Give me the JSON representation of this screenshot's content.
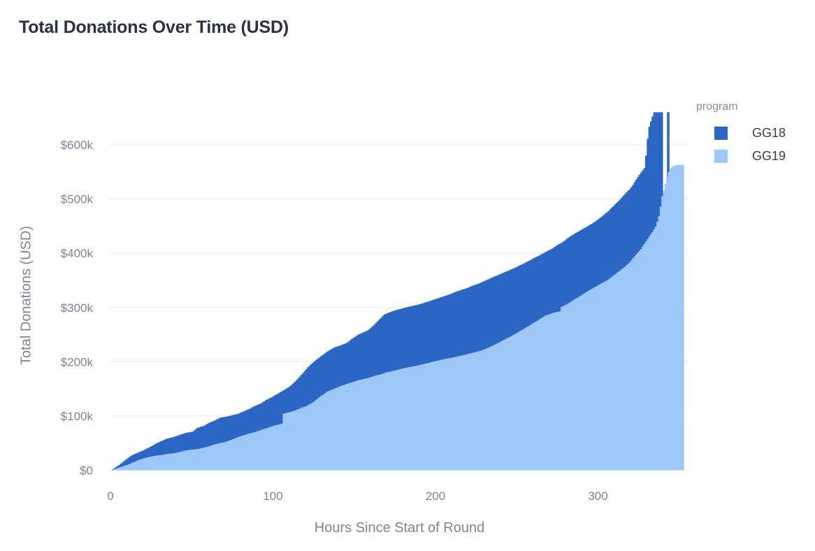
{
  "page": {
    "title": "Total Donations Over Time (USD)"
  },
  "chart_data": {
    "type": "area",
    "title": "Total Donations Over Time (USD)",
    "xlabel": "Hours Since Start of Round",
    "ylabel": "Total Donations (USD)",
    "xlim": [
      0,
      356
    ],
    "ylim": [
      0,
      660000
    ],
    "grid": "horizontal-only",
    "gridline_color": "#e8ebf0",
    "axis_text_color": "#7c8594",
    "x_ticks": [
      {
        "value": 0,
        "label": "0"
      },
      {
        "value": 100,
        "label": "100"
      },
      {
        "value": 200,
        "label": "200"
      },
      {
        "value": 300,
        "label": "300"
      }
    ],
    "y_ticks": [
      {
        "value": 0,
        "label": "$0"
      },
      {
        "value": 100000,
        "label": "$100k"
      },
      {
        "value": 200000,
        "label": "$200k"
      },
      {
        "value": 300000,
        "label": "$300k"
      },
      {
        "value": 400000,
        "label": "$400k"
      },
      {
        "value": 500000,
        "label": "$500k"
      },
      {
        "value": 600000,
        "label": "$600k"
      }
    ],
    "legend": {
      "title": "program",
      "position": "top-right"
    },
    "series": [
      {
        "name": "GG18",
        "color": "#2c66c4",
        "x_unit": "hours",
        "y_unit": "USD",
        "segments": [
          [
            [
              0,
              0
            ],
            [
              2,
              4000
            ],
            [
              5,
              10000
            ],
            [
              8,
              17000
            ],
            [
              10,
              22000
            ],
            [
              13,
              28000
            ],
            [
              16,
              32000
            ],
            [
              20,
              37000
            ],
            [
              24,
              43000
            ],
            [
              28,
              50000
            ],
            [
              31,
              54000
            ],
            [
              34,
              58000
            ],
            [
              38,
              61000
            ],
            [
              42,
              65000
            ],
            [
              46,
              69000
            ],
            [
              50,
              71000
            ],
            [
              53,
              78000
            ],
            [
              57,
              82000
            ],
            [
              60,
              87000
            ],
            [
              64,
              92000
            ],
            [
              67,
              97000
            ],
            [
              71,
              99000
            ],
            [
              74,
              101000
            ],
            [
              78,
              104000
            ],
            [
              81,
              108000
            ],
            [
              85,
              113000
            ],
            [
              88,
              118000
            ],
            [
              92,
              123000
            ],
            [
              95,
              129000
            ],
            [
              99,
              135000
            ],
            [
              103,
              142000
            ],
            [
              107,
              149000
            ],
            [
              110,
              155000
            ],
            [
              113,
              163000
            ],
            [
              117,
              176000
            ],
            [
              121,
              190000
            ],
            [
              125,
              201000
            ],
            [
              129,
              210000
            ],
            [
              133,
              219000
            ],
            [
              137,
              226000
            ],
            [
              141,
              230000
            ],
            [
              145,
              235000
            ],
            [
              148,
              242000
            ],
            [
              152,
              250000
            ],
            [
              155,
              254000
            ],
            [
              158,
              258000
            ],
            [
              161,
              266000
            ],
            [
              164,
              275000
            ],
            [
              168,
              287000
            ],
            [
              172,
              292000
            ],
            [
              176,
              296000
            ],
            [
              180,
              299000
            ],
            [
              184,
              302000
            ],
            [
              187,
              304000
            ],
            [
              191,
              307000
            ],
            [
              195,
              311000
            ],
            [
              198,
              314000
            ],
            [
              201,
              317000
            ],
            [
              205,
              321000
            ],
            [
              209,
              325000
            ],
            [
              212,
              329000
            ],
            [
              215,
              332000
            ],
            [
              219,
              336000
            ],
            [
              223,
              341000
            ],
            [
              226,
              344000
            ],
            [
              229,
              348000
            ],
            [
              232,
              352000
            ],
            [
              235,
              356000
            ],
            [
              239,
              361000
            ],
            [
              242,
              365000
            ],
            [
              246,
              370000
            ],
            [
              249,
              374000
            ],
            [
              253,
              380000
            ],
            [
              257,
              386000
            ],
            [
              260,
              391000
            ],
            [
              264,
              397000
            ],
            [
              267,
              402000
            ],
            [
              271,
              408000
            ],
            [
              274,
              414000
            ],
            [
              278,
              421000
            ],
            [
              281,
              428000
            ],
            [
              285,
              436000
            ],
            [
              288,
              441000
            ],
            [
              292,
              448000
            ],
            [
              295,
              453000
            ],
            [
              299,
              461000
            ],
            [
              302,
              468000
            ],
            [
              306,
              478000
            ],
            [
              309,
              487000
            ],
            [
              313,
              499000
            ],
            [
              316,
              509000
            ],
            [
              319,
              518000
            ],
            [
              321,
              526000
            ],
            [
              323,
              536000
            ],
            [
              325,
              545000
            ],
            [
              327,
              553000
            ],
            [
              328,
              557000
            ],
            [
              329,
              580000
            ],
            [
              330,
              611000
            ],
            [
              331,
              633000
            ],
            [
              332,
              643000
            ],
            [
              333,
              652000
            ],
            [
              334,
              660000
            ],
            [
              340,
              660000
            ]
          ],
          [
            [
              342.5,
              660000
            ],
            [
              344,
              660000
            ]
          ]
        ]
      },
      {
        "name": "GG19",
        "color": "#9cc7f6",
        "x_unit": "hours",
        "y_unit": "USD",
        "segments": [
          [
            [
              0,
              0
            ],
            [
              3,
              3000
            ],
            [
              6,
              6000
            ],
            [
              10,
              10000
            ],
            [
              13,
              14000
            ],
            [
              17,
              19000
            ],
            [
              20,
              22000
            ],
            [
              24,
              25000
            ],
            [
              28,
              27000
            ],
            [
              31,
              28000
            ],
            [
              34,
              30000
            ],
            [
              38,
              31000
            ],
            [
              41,
              33000
            ],
            [
              44,
              35000
            ],
            [
              47,
              37000
            ],
            [
              50,
              38000
            ],
            [
              53,
              39000
            ],
            [
              56,
              41000
            ],
            [
              60,
              44000
            ],
            [
              63,
              47000
            ],
            [
              67,
              50000
            ],
            [
              70,
              52000
            ],
            [
              74,
              56000
            ],
            [
              77,
              60000
            ],
            [
              81,
              64000
            ],
            [
              84,
              67000
            ],
            [
              88,
              70000
            ],
            [
              91,
              73000
            ],
            [
              95,
              77000
            ],
            [
              98,
              80000
            ],
            [
              101,
              83000
            ],
            [
              104,
              85000
            ],
            [
              105,
              86000
            ],
            [
              106,
              104000
            ],
            [
              108,
              106000
            ],
            [
              110,
              107000
            ],
            [
              113,
              110000
            ],
            [
              117,
              115000
            ],
            [
              120,
              118000
            ],
            [
              124,
              125000
            ],
            [
              127,
              132000
            ],
            [
              129,
              137000
            ],
            [
              133,
              145000
            ],
            [
              137,
              150000
            ],
            [
              141,
              155000
            ],
            [
              145,
              159000
            ],
            [
              148,
              162000
            ],
            [
              152,
              166000
            ],
            [
              155,
              168000
            ],
            [
              158,
              170000
            ],
            [
              162,
              174000
            ],
            [
              166,
              177000
            ],
            [
              169,
              180000
            ],
            [
              172,
              182000
            ],
            [
              176,
              185000
            ],
            [
              180,
              188000
            ],
            [
              183,
              190000
            ],
            [
              187,
              192000
            ],
            [
              191,
              195000
            ],
            [
              194,
              197000
            ],
            [
              198,
              200000
            ],
            [
              201,
              202000
            ],
            [
              205,
              205000
            ],
            [
              209,
              207000
            ],
            [
              212,
              209000
            ],
            [
              215,
              211000
            ],
            [
              219,
              214000
            ],
            [
              223,
              217000
            ],
            [
              226,
              219000
            ],
            [
              229,
              222000
            ],
            [
              232,
              226000
            ],
            [
              235,
              230000
            ],
            [
              239,
              236000
            ],
            [
              242,
              241000
            ],
            [
              246,
              247000
            ],
            [
              249,
              252000
            ],
            [
              253,
              259000
            ],
            [
              257,
              266000
            ],
            [
              260,
              272000
            ],
            [
              264,
              279000
            ],
            [
              267,
              285000
            ],
            [
              270,
              288000
            ],
            [
              273,
              291000
            ],
            [
              276,
              293000
            ],
            [
              277,
              301000
            ],
            [
              281,
              307000
            ],
            [
              285,
              315000
            ],
            [
              288,
              320000
            ],
            [
              292,
              328000
            ],
            [
              295,
              333000
            ],
            [
              299,
              340000
            ],
            [
              302,
              345000
            ],
            [
              306,
              352000
            ],
            [
              309,
              359000
            ],
            [
              313,
              368000
            ],
            [
              316,
              375000
            ],
            [
              319,
              383000
            ],
            [
              321,
              391000
            ],
            [
              324,
              401000
            ],
            [
              326,
              408000
            ],
            [
              328,
              417000
            ],
            [
              330,
              426000
            ],
            [
              332,
              435000
            ],
            [
              334,
              444000
            ],
            [
              335,
              449000
            ],
            [
              336,
              458000
            ],
            [
              337,
              468000
            ],
            [
              338,
              486000
            ],
            [
              339,
              505000
            ],
            [
              340,
              516000
            ],
            [
              341,
              528000
            ],
            [
              342,
              540000
            ],
            [
              343,
              550000
            ],
            [
              344,
              556000
            ],
            [
              345,
              559000
            ],
            [
              346,
              561000
            ],
            [
              348,
              563000
            ],
            [
              353,
              563000
            ]
          ]
        ]
      }
    ]
  }
}
